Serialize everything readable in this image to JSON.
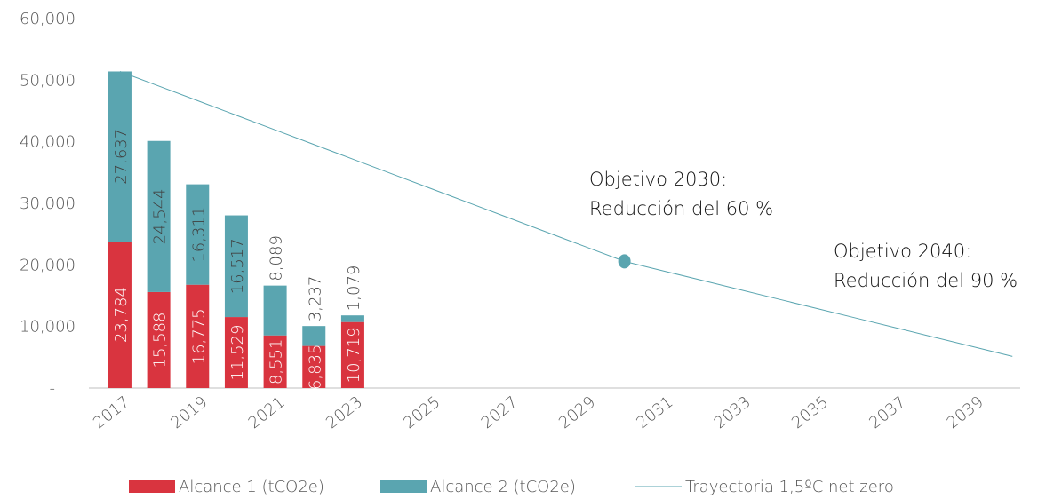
{
  "chart_data": {
    "type": "stacked-bar-line",
    "x": [
      2017,
      2018,
      2019,
      2020,
      2021,
      2022,
      2023,
      2024,
      2025,
      2026,
      2027,
      2028,
      2029,
      2030,
      2031,
      2032,
      2033,
      2034,
      2035,
      2036,
      2037,
      2038,
      2039,
      2040
    ],
    "xlim": [
      2016.2,
      2040.2
    ],
    "xticks": [
      2017,
      2019,
      2021,
      2023,
      2025,
      2027,
      2029,
      2031,
      2033,
      2035,
      2037,
      2039
    ],
    "ylim": [
      0,
      60000
    ],
    "yticks": [
      {
        "value": 0,
        "label": "-"
      },
      {
        "value": 10000,
        "label": "10,000"
      },
      {
        "value": 20000,
        "label": "20,000"
      },
      {
        "value": 30000,
        "label": "30,000"
      },
      {
        "value": 40000,
        "label": "40,000"
      },
      {
        "value": 50000,
        "label": "50,000"
      },
      {
        "value": 60000,
        "label": "60,000"
      }
    ],
    "grid": false,
    "series": [
      {
        "name": "Alcance 1 (tCO2e)",
        "type": "bar",
        "color": "#d9343f",
        "label_color": "#ffffff",
        "values": [
          23784,
          15588,
          16775,
          11529,
          8551,
          6835,
          10719,
          null,
          null,
          null,
          null,
          null,
          null,
          null,
          null,
          null,
          null,
          null,
          null,
          null,
          null,
          null,
          null,
          null
        ],
        "value_labels": [
          "23,784",
          "15,588",
          "16,775",
          "11,529",
          "8,551",
          "6,835",
          "10,719",
          null,
          null,
          null,
          null,
          null,
          null,
          null,
          null,
          null,
          null,
          null,
          null,
          null,
          null,
          null,
          null,
          null
        ]
      },
      {
        "name": "Alcance 2 (tCO2e)",
        "type": "bar",
        "color": "#5aa5b0",
        "label_color": "#404040",
        "values": [
          27637,
          24544,
          16311,
          16517,
          8089,
          3237,
          1079,
          null,
          null,
          null,
          null,
          null,
          null,
          null,
          null,
          null,
          null,
          null,
          null,
          null,
          null,
          null,
          null,
          null
        ],
        "value_labels": [
          "27,637",
          "24,544",
          "16,311",
          "16,517",
          "8,089",
          "3,237",
          "1,079",
          null,
          null,
          null,
          null,
          null,
          null,
          null,
          null,
          null,
          null,
          null,
          null,
          null,
          null,
          null,
          null,
          null
        ]
      },
      {
        "name": "Trayectoria 1,5ºC net zero",
        "type": "line",
        "color": "#5aa5b0",
        "markers_at": [
          2030
        ],
        "values": [
          51421,
          49048,
          46674,
          44301,
          41928,
          39554,
          37181,
          34808,
          32435,
          30061,
          27688,
          25315,
          22941,
          20568,
          19025,
          17483,
          15940,
          14398,
          12855,
          11313,
          9770,
          8227,
          6685,
          5142
        ]
      }
    ],
    "annotations": [
      {
        "lines": [
          "Objetivo 2030:",
          "Reducción del 60 %"
        ]
      },
      {
        "lines": [
          "Objetivo 2040:",
          "Reducción del 90 %"
        ]
      }
    ],
    "legend": "bottom"
  }
}
